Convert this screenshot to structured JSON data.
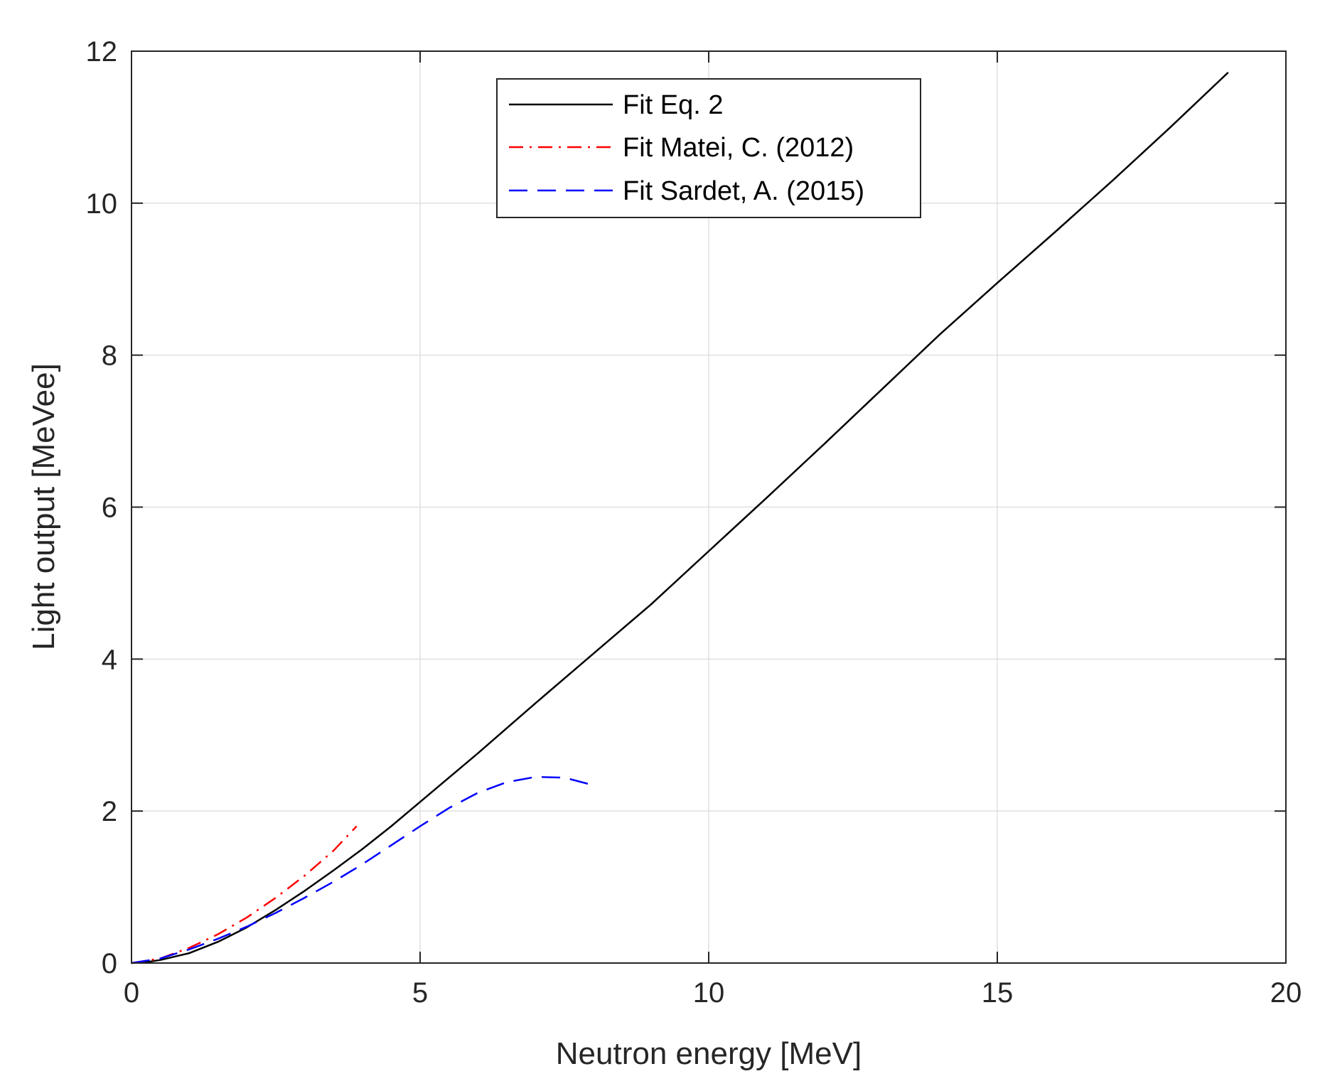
{
  "chart_data": {
    "type": "line",
    "title": "",
    "xlabel": "Neutron energy [MeV]",
    "ylabel": "Light output [MeVee]",
    "xlim": [
      0,
      20
    ],
    "ylim": [
      0,
      12
    ],
    "xticks": [
      0,
      5,
      10,
      15,
      20
    ],
    "yticks": [
      0,
      2,
      4,
      6,
      8,
      10,
      12
    ],
    "xtick_labels": [
      "0",
      "5",
      "10",
      "15",
      "20"
    ],
    "ytick_labels": [
      "0",
      "2",
      "4",
      "6",
      "8",
      "10",
      "12"
    ],
    "grid": true,
    "legend_position": "top-center",
    "series": [
      {
        "name": "Fit Eq. 2",
        "color": "#000000",
        "style": "solid",
        "x": [
          0,
          0.25,
          0.5,
          1.0,
          1.5,
          2.0,
          2.5,
          3.0,
          3.5,
          4.0,
          4.5,
          5.0,
          6.0,
          7.0,
          8.0,
          9.0,
          10.0,
          11.0,
          12.0,
          13.0,
          14.0,
          15.0,
          16.0,
          17.0,
          18.0,
          19.0
        ],
        "y": [
          0,
          0.01,
          0.04,
          0.13,
          0.28,
          0.47,
          0.7,
          0.95,
          1.22,
          1.5,
          1.8,
          2.12,
          2.76,
          3.42,
          4.07,
          4.72,
          5.42,
          6.12,
          6.83,
          7.55,
          8.27,
          8.95,
          9.62,
          10.3,
          11.0,
          11.72
        ]
      },
      {
        "name": "Fit Matei, C. (2012)",
        "color": "#ff0000",
        "style": "dashdot",
        "x": [
          0,
          0.5,
          1.0,
          1.5,
          2.0,
          2.5,
          3.0,
          3.5,
          3.9
        ],
        "y": [
          0,
          0.06,
          0.2,
          0.38,
          0.6,
          0.86,
          1.15,
          1.48,
          1.8
        ]
      },
      {
        "name": "Fit Sardet, A. (2015)",
        "color": "#0000ff",
        "style": "dashed",
        "x": [
          0,
          0.5,
          1.0,
          1.5,
          2.0,
          2.5,
          3.0,
          3.5,
          4.0,
          4.5,
          5.0,
          5.5,
          6.0,
          6.5,
          7.0,
          7.5,
          8.0
        ],
        "y": [
          0,
          0.06,
          0.18,
          0.32,
          0.48,
          0.66,
          0.86,
          1.07,
          1.3,
          1.55,
          1.8,
          2.04,
          2.24,
          2.38,
          2.45,
          2.44,
          2.34
        ]
      }
    ]
  }
}
